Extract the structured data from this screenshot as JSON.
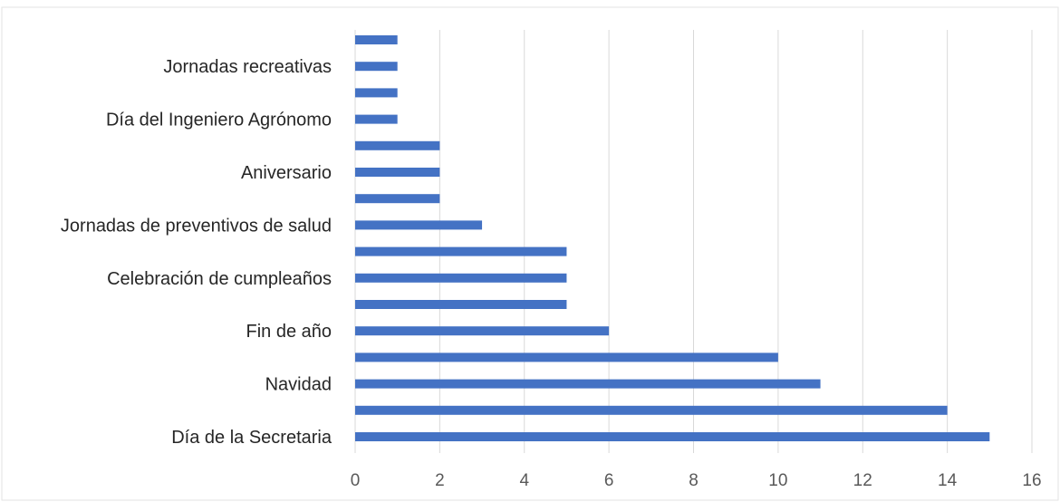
{
  "chart_data": {
    "type": "bar",
    "orientation": "horizontal",
    "title": "",
    "xlabel": "",
    "ylabel": "",
    "xlim": [
      0,
      16
    ],
    "x_ticks": [
      0,
      2,
      4,
      6,
      8,
      10,
      12,
      14,
      16
    ],
    "grid": true,
    "legend": "none",
    "bar_color": "#4472c4",
    "categories": [
      "Día de la Secretaria",
      "",
      "Navidad",
      "",
      "Fin de año",
      "",
      "Celebración de cumpleaños",
      "",
      "Jornadas de preventivos de salud",
      "",
      "Aniversario",
      "",
      "Día del Ingeniero Agrónomo",
      "",
      "Jornadas recreativas",
      ""
    ],
    "values": [
      15,
      14,
      11,
      10,
      6,
      5,
      5,
      5,
      3,
      2,
      2,
      2,
      1,
      1,
      1,
      1
    ]
  }
}
